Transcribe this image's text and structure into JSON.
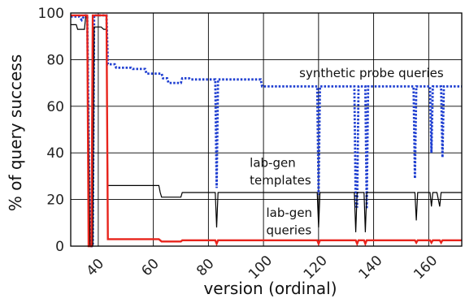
{
  "chart_data": {
    "type": "line",
    "xlabel": "version (ordinal)",
    "ylabel": "% of query success",
    "xlim": [
      30,
      172
    ],
    "ylim": [
      0,
      100
    ],
    "x_ticks": [
      40,
      60,
      80,
      100,
      120,
      140,
      160
    ],
    "y_ticks": [
      0,
      20,
      40,
      60,
      80,
      100
    ],
    "grid": true,
    "annotations": [
      {
        "text": "synthetic probe queries",
        "x": 113,
        "y": 72.5
      },
      {
        "text": "lab-gen",
        "x": 95,
        "y": 34
      },
      {
        "text": "templates",
        "x": 95,
        "y": 26.5
      },
      {
        "text": "lab-gen",
        "x": 101,
        "y": 12.5
      },
      {
        "text": "queries",
        "x": 101,
        "y": 5
      }
    ],
    "series": [
      {
        "key": "probe",
        "color": "#1f3fd1",
        "style": "dotted",
        "points": [
          [
            30,
            98.5
          ],
          [
            33,
            98.5
          ],
          [
            34,
            97
          ],
          [
            35,
            99
          ],
          [
            36,
            99
          ],
          [
            37,
            0
          ],
          [
            38,
            0
          ],
          [
            38.5,
            99
          ],
          [
            41,
            99
          ],
          [
            42,
            99
          ],
          [
            43,
            99
          ],
          [
            43.5,
            78
          ],
          [
            46,
            78
          ],
          [
            46.5,
            76.5
          ],
          [
            52,
            76.5
          ],
          [
            52.5,
            76
          ],
          [
            57,
            76
          ],
          [
            57.5,
            74
          ],
          [
            63,
            74
          ],
          [
            63.5,
            72
          ],
          [
            65,
            72
          ],
          [
            65.5,
            70
          ],
          [
            70,
            70
          ],
          [
            70.5,
            72
          ],
          [
            73,
            72
          ],
          [
            73.5,
            71.5
          ],
          [
            82,
            71.5
          ],
          [
            82.5,
            71.5
          ],
          [
            83,
            25
          ],
          [
            83.5,
            71.5
          ],
          [
            99,
            71.5
          ],
          [
            99.5,
            68.5
          ],
          [
            119,
            68.5
          ],
          [
            119.5,
            68.5
          ],
          [
            120,
            22
          ],
          [
            120.5,
            68.5
          ],
          [
            133,
            68.5
          ],
          [
            133.5,
            17
          ],
          [
            134,
            17
          ],
          [
            134.5,
            68.5
          ],
          [
            136.5,
            68.5
          ],
          [
            137,
            68.5
          ],
          [
            137.5,
            16
          ],
          [
            138,
            68.5
          ],
          [
            154,
            68.5
          ],
          [
            154.5,
            68.5
          ],
          [
            155,
            29
          ],
          [
            155.5,
            68.5
          ],
          [
            160.5,
            68.5
          ],
          [
            161,
            40
          ],
          [
            161.5,
            68.5
          ],
          [
            164.5,
            68.5
          ],
          [
            165,
            38
          ],
          [
            165.5,
            68.5
          ],
          [
            172,
            68.5
          ]
        ]
      },
      {
        "key": "templates",
        "color": "#000000",
        "style": "solid",
        "points": [
          [
            30,
            95
          ],
          [
            32,
            95
          ],
          [
            32.5,
            93
          ],
          [
            35,
            93
          ],
          [
            35.5,
            99
          ],
          [
            36,
            99
          ],
          [
            37,
            0
          ],
          [
            38,
            0
          ],
          [
            38.5,
            94
          ],
          [
            41,
            94
          ],
          [
            42,
            93
          ],
          [
            43,
            93
          ],
          [
            43.5,
            26
          ],
          [
            62,
            26
          ],
          [
            62.5,
            23
          ],
          [
            63,
            21
          ],
          [
            70,
            21
          ],
          [
            70.5,
            23
          ],
          [
            82.5,
            23
          ],
          [
            83,
            8
          ],
          [
            83.5,
            23
          ],
          [
            119.5,
            23
          ],
          [
            120,
            8
          ],
          [
            120.5,
            23
          ],
          [
            133,
            23
          ],
          [
            133.5,
            6
          ],
          [
            134,
            23
          ],
          [
            136.5,
            23
          ],
          [
            137,
            6
          ],
          [
            137.5,
            23
          ],
          [
            155,
            23
          ],
          [
            155.5,
            11
          ],
          [
            156,
            23
          ],
          [
            160.5,
            23
          ],
          [
            161,
            17
          ],
          [
            161.5,
            23
          ],
          [
            163,
            23
          ],
          [
            164,
            17
          ],
          [
            164.5,
            23
          ],
          [
            172,
            23
          ]
        ]
      },
      {
        "key": "queries",
        "color": "#e8241c",
        "style": "solid",
        "points": [
          [
            30,
            99
          ],
          [
            35,
            99
          ],
          [
            36,
            99
          ],
          [
            36.5,
            0
          ],
          [
            37.5,
            0
          ],
          [
            38,
            99
          ],
          [
            42,
            99
          ],
          [
            43,
            99
          ],
          [
            43.5,
            3
          ],
          [
            62,
            3
          ],
          [
            63,
            2
          ],
          [
            70,
            2
          ],
          [
            70.5,
            2.5
          ],
          [
            82.5,
            2.5
          ],
          [
            83,
            1
          ],
          [
            83.5,
            2.5
          ],
          [
            119.5,
            2.5
          ],
          [
            120,
            1
          ],
          [
            120.5,
            2.5
          ],
          [
            133.5,
            2.5
          ],
          [
            134,
            1
          ],
          [
            134.5,
            2.5
          ],
          [
            136.5,
            2.5
          ],
          [
            137,
            1
          ],
          [
            137.5,
            2.5
          ],
          [
            155,
            2.5
          ],
          [
            155.5,
            1.5
          ],
          [
            156,
            2.5
          ],
          [
            160.5,
            2.5
          ],
          [
            161,
            1.5
          ],
          [
            161.5,
            2.5
          ],
          [
            164,
            2.5
          ],
          [
            164.5,
            1.5
          ],
          [
            165,
            2.5
          ],
          [
            172,
            2.5
          ]
        ]
      }
    ]
  }
}
